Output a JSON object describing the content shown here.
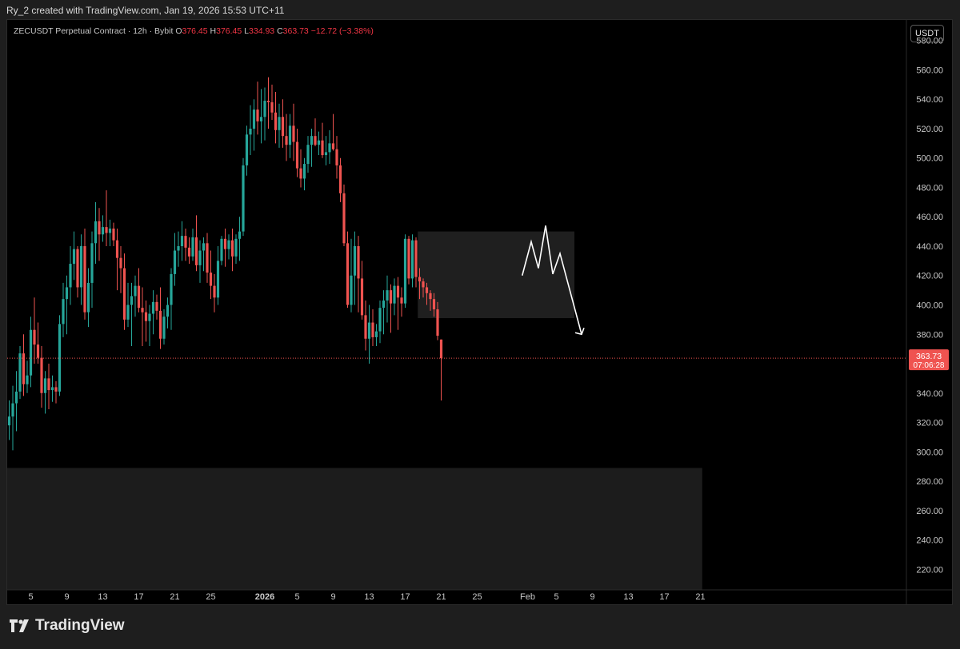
{
  "header": {
    "attribution": "Ry_2 created with TradingView.com, Jan 19, 2026 15:53 UTC+11"
  },
  "legend": {
    "symbol": "ZECUSDT Perpetual Contract · 12h · Bybit",
    "o_key": "O",
    "o": "376.45",
    "h_key": "H",
    "h": "376.45",
    "l_key": "L",
    "l": "334.93",
    "c_key": "C",
    "c": "363.73",
    "change": "−12.72 (−3.38%)"
  },
  "currency_button": "USDT",
  "price_tag": {
    "price": "363.73",
    "countdown": "07:06:28"
  },
  "footer": {
    "logo_text": "TradingView"
  },
  "colors": {
    "up": "#26a69a",
    "down": "#ef5350",
    "background": "#000000",
    "axis_text": "#c8c8c8",
    "price_line": "#ef5350"
  },
  "chart_data": {
    "type": "candlestick",
    "symbol": "ZECUSDT",
    "interval": "12h",
    "ylim": [
      206,
      594
    ],
    "y_ticks": [
      "220.00",
      "240.00",
      "260.00",
      "280.00",
      "300.00",
      "320.00",
      "340.00",
      "360.00",
      "380.00",
      "400.00",
      "420.00",
      "440.00",
      "460.00",
      "480.00",
      "500.00",
      "520.00",
      "540.00",
      "560.00",
      "580.00"
    ],
    "x_ticks": [
      {
        "label": "5",
        "i": 6
      },
      {
        "label": "9",
        "i": 16
      },
      {
        "label": "13",
        "i": 26
      },
      {
        "label": "17",
        "i": 36
      },
      {
        "label": "21",
        "i": 46
      },
      {
        "label": "25",
        "i": 56
      },
      {
        "label": "2026",
        "i": 71,
        "bold": true
      },
      {
        "label": "5",
        "i": 80
      },
      {
        "label": "9",
        "i": 90
      },
      {
        "label": "13",
        "i": 100
      },
      {
        "label": "17",
        "i": 110
      },
      {
        "label": "21",
        "i": 120
      },
      {
        "label": "25",
        "i": 130
      },
      {
        "label": "Feb",
        "i": 144
      },
      {
        "label": "5",
        "i": 152
      },
      {
        "label": "9",
        "i": 162
      },
      {
        "label": "13",
        "i": 172
      },
      {
        "label": "17",
        "i": 182
      },
      {
        "label": "21",
        "i": 192
      }
    ],
    "candles": [
      [
        318,
        335,
        308,
        324
      ],
      [
        324,
        345,
        301,
        333
      ],
      [
        333,
        355,
        314,
        341
      ],
      [
        341,
        372,
        336,
        367
      ],
      [
        367,
        380,
        338,
        346
      ],
      [
        346,
        362,
        340,
        352
      ],
      [
        352,
        392,
        344,
        383
      ],
      [
        383,
        405,
        360,
        373
      ],
      [
        373,
        388,
        360,
        364
      ],
      [
        364,
        372,
        330,
        340
      ],
      [
        340,
        355,
        326,
        350
      ],
      [
        350,
        360,
        329,
        342
      ],
      [
        342,
        352,
        334,
        344
      ],
      [
        344,
        348,
        333,
        341
      ],
      [
        341,
        393,
        338,
        387
      ],
      [
        387,
        415,
        378,
        404
      ],
      [
        404,
        420,
        380,
        412
      ],
      [
        412,
        440,
        400,
        428
      ],
      [
        428,
        450,
        417,
        438
      ],
      [
        438,
        440,
        405,
        412
      ],
      [
        412,
        448,
        400,
        440
      ],
      [
        440,
        452,
        390,
        395
      ],
      [
        395,
        425,
        385,
        415
      ],
      [
        415,
        450,
        398,
        442
      ],
      [
        442,
        470,
        428,
        457
      ],
      [
        457,
        466,
        430,
        448
      ],
      [
        448,
        461,
        443,
        453
      ],
      [
        453,
        478,
        440,
        449
      ],
      [
        449,
        458,
        440,
        452
      ],
      [
        452,
        456,
        440,
        444
      ],
      [
        444,
        452,
        410,
        432
      ],
      [
        432,
        440,
        408,
        425
      ],
      [
        425,
        435,
        383,
        390
      ],
      [
        390,
        415,
        385,
        400
      ],
      [
        400,
        415,
        372,
        406
      ],
      [
        406,
        420,
        392,
        413
      ],
      [
        413,
        425,
        395,
        398
      ],
      [
        398,
        412,
        372,
        395
      ],
      [
        395,
        403,
        375,
        389
      ],
      [
        389,
        400,
        372,
        394
      ],
      [
        394,
        410,
        380,
        402
      ],
      [
        402,
        407,
        390,
        396
      ],
      [
        396,
        412,
        370,
        377
      ],
      [
        377,
        397,
        373,
        392
      ],
      [
        392,
        405,
        384,
        400
      ],
      [
        400,
        425,
        383,
        421
      ],
      [
        421,
        449,
        413,
        437
      ],
      [
        437,
        450,
        426,
        440
      ],
      [
        440,
        457,
        430,
        447
      ],
      [
        447,
        452,
        430,
        439
      ],
      [
        439,
        446,
        428,
        433
      ],
      [
        433,
        452,
        430,
        446
      ],
      [
        446,
        461,
        423,
        427
      ],
      [
        427,
        444,
        415,
        437
      ],
      [
        437,
        446,
        423,
        442
      ],
      [
        442,
        449,
        415,
        422
      ],
      [
        422,
        437,
        404,
        413
      ],
      [
        413,
        421,
        395,
        405
      ],
      [
        405,
        440,
        400,
        430
      ],
      [
        430,
        447,
        427,
        445
      ],
      [
        445,
        452,
        426,
        438
      ],
      [
        438,
        448,
        431,
        444
      ],
      [
        444,
        452,
        423,
        433
      ],
      [
        433,
        448,
        428,
        445
      ],
      [
        445,
        460,
        430,
        450
      ],
      [
        450,
        500,
        447,
        495
      ],
      [
        495,
        522,
        488,
        516
      ],
      [
        516,
        536,
        502,
        520
      ],
      [
        520,
        540,
        505,
        533
      ],
      [
        533,
        552,
        516,
        525
      ],
      [
        525,
        547,
        510,
        528
      ],
      [
        528,
        548,
        512,
        539
      ],
      [
        539,
        555,
        520,
        538
      ],
      [
        538,
        550,
        526,
        531
      ],
      [
        531,
        545,
        510,
        519
      ],
      [
        519,
        537,
        507,
        528
      ],
      [
        528,
        540,
        507,
        515
      ],
      [
        515,
        530,
        498,
        509
      ],
      [
        509,
        530,
        500,
        522
      ],
      [
        522,
        537,
        498,
        511
      ],
      [
        511,
        520,
        487,
        493
      ],
      [
        493,
        506,
        480,
        486
      ],
      [
        486,
        500,
        478,
        496
      ],
      [
        496,
        515,
        490,
        509
      ],
      [
        509,
        520,
        494,
        515
      ],
      [
        515,
        527,
        508,
        509
      ],
      [
        509,
        518,
        502,
        512
      ],
      [
        512,
        524,
        500,
        502
      ],
      [
        502,
        515,
        495,
        504
      ],
      [
        504,
        519,
        496,
        510
      ],
      [
        510,
        530,
        505,
        506
      ],
      [
        506,
        515,
        486,
        495
      ],
      [
        495,
        500,
        470,
        476
      ],
      [
        476,
        482,
        440,
        442
      ],
      [
        442,
        450,
        398,
        400
      ],
      [
        400,
        445,
        395,
        420
      ],
      [
        420,
        450,
        400,
        440
      ],
      [
        440,
        447,
        395,
        418
      ],
      [
        418,
        430,
        390,
        393
      ],
      [
        393,
        403,
        369,
        377
      ],
      [
        377,
        400,
        360,
        388
      ],
      [
        388,
        397,
        372,
        378
      ],
      [
        378,
        387,
        372,
        382
      ],
      [
        382,
        403,
        374,
        398
      ],
      [
        398,
        410,
        380,
        403
      ],
      [
        403,
        420,
        388,
        410
      ],
      [
        410,
        414,
        381,
        401
      ],
      [
        401,
        418,
        393,
        413
      ],
      [
        413,
        419,
        383,
        405
      ],
      [
        405,
        412,
        392,
        401
      ],
      [
        401,
        448,
        398,
        445
      ],
      [
        445,
        447,
        414,
        418
      ],
      [
        418,
        448,
        412,
        444
      ],
      [
        444,
        446,
        412,
        419
      ],
      [
        419,
        425,
        404,
        416
      ],
      [
        416,
        418,
        405,
        412
      ],
      [
        412,
        415,
        400,
        408
      ],
      [
        408,
        410,
        396,
        404
      ],
      [
        404,
        408,
        392,
        397
      ],
      [
        397,
        402,
        376,
        379
      ],
      [
        376.45,
        376.45,
        334.93,
        363.73
      ]
    ]
  },
  "annotation": {
    "zone_top": 450,
    "zone_bottom": 391,
    "zone2_top": 289,
    "zone2_bottom": 206
  }
}
